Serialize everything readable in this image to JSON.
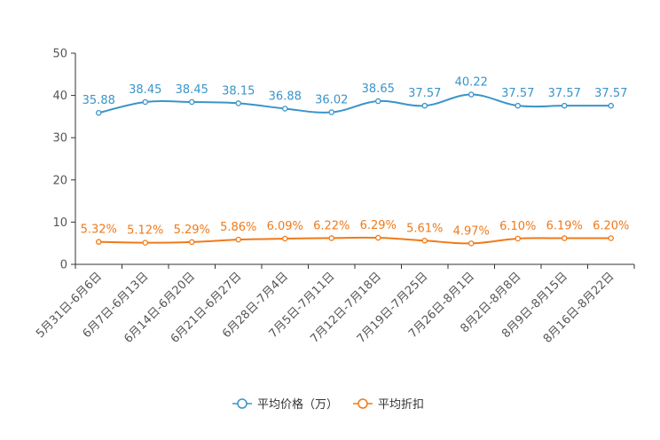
{
  "chart_data": {
    "type": "line",
    "title": "",
    "xlabel": "",
    "ylabel": "",
    "ylim": [
      0,
      50
    ],
    "yticks": [
      0,
      10,
      20,
      30,
      40,
      50
    ],
    "grid": false,
    "legend_position": "bottom-center",
    "categories": [
      "5月31日-6月6日",
      "6月7日-6月13日",
      "6月14日-6月20日",
      "6月21日-6月27日",
      "6月28日-7月4日",
      "7月5日-7月11日",
      "7月12日-7月18日",
      "7月19日-7月25日",
      "7月26日-8月1日",
      "8月2日-8月8日",
      "8月9日-8月15日",
      "8月16日-8月22日"
    ],
    "series": [
      {
        "name": "平均价格（万）",
        "color": "#3a94c8",
        "values": [
          35.88,
          38.45,
          38.45,
          38.15,
          36.88,
          36.02,
          38.65,
          37.57,
          40.22,
          37.57,
          37.57,
          37.57
        ],
        "labels": [
          "35.88",
          "38.45",
          "38.45",
          "38.15",
          "36.88",
          "36.02",
          "38.65",
          "37.57",
          "40.22",
          "37.57",
          "37.57",
          "37.57"
        ]
      },
      {
        "name": "平均折扣",
        "color": "#f07a1a",
        "values": [
          5.32,
          5.12,
          5.29,
          5.86,
          6.09,
          6.22,
          6.29,
          5.61,
          4.97,
          6.1,
          6.19,
          6.2
        ],
        "labels": [
          "5.32%",
          "5.12%",
          "5.29%",
          "5.86%",
          "6.09%",
          "6.22%",
          "6.29%",
          "5.61%",
          "4.97%",
          "6.10%",
          "6.19%",
          "6.20%"
        ]
      }
    ]
  }
}
